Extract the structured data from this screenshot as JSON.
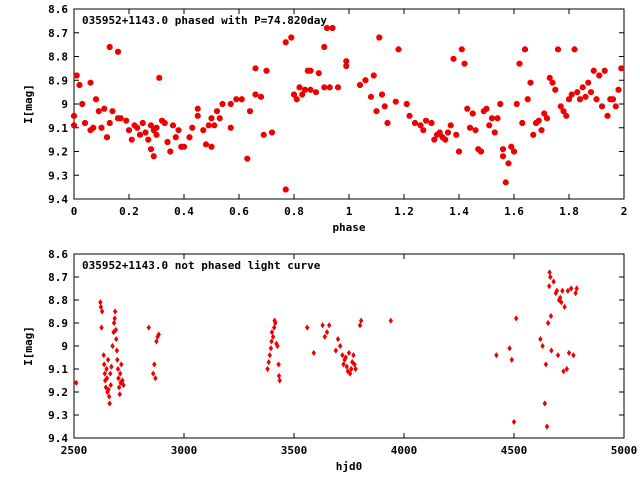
{
  "chart_data": [
    {
      "type": "scatter",
      "title": "035952+1143.0 phased with P=74.820day",
      "xlabel": "phase",
      "ylabel": "I[mag]",
      "xlim": [
        0,
        2
      ],
      "ylim": [
        8.6,
        9.4
      ],
      "y_inverted": true,
      "grid": false,
      "color": "#ee0000",
      "xticks": [
        "0",
        "0.2",
        "0.4",
        "0.6",
        "0.8",
        "1",
        "1.2",
        "1.4",
        "1.6",
        "1.8",
        "2"
      ],
      "yticks": [
        "8.6",
        "8.7",
        "8.8",
        "8.9",
        "9",
        "9.1",
        "9.2",
        "9.3",
        "9.4"
      ],
      "points": [
        [
          0.0,
          9.05
        ],
        [
          0.0,
          9.09
        ],
        [
          0.01,
          8.88
        ],
        [
          0.02,
          8.92
        ],
        [
          0.03,
          9.0
        ],
        [
          0.04,
          9.08
        ],
        [
          0.06,
          9.11
        ],
        [
          0.06,
          8.91
        ],
        [
          0.07,
          9.1
        ],
        [
          0.08,
          8.98
        ],
        [
          0.09,
          9.03
        ],
        [
          0.1,
          9.1
        ],
        [
          0.11,
          9.02
        ],
        [
          0.12,
          9.14
        ],
        [
          0.13,
          9.08
        ],
        [
          0.13,
          8.76
        ],
        [
          0.14,
          9.03
        ],
        [
          0.16,
          9.06
        ],
        [
          0.16,
          8.78
        ],
        [
          0.17,
          9.06
        ],
        [
          0.19,
          9.07
        ],
        [
          0.2,
          9.11
        ],
        [
          0.21,
          9.15
        ],
        [
          0.22,
          9.09
        ],
        [
          0.23,
          9.1
        ],
        [
          0.24,
          9.13
        ],
        [
          0.25,
          9.08
        ],
        [
          0.26,
          9.12
        ],
        [
          0.27,
          9.15
        ],
        [
          0.28,
          9.09
        ],
        [
          0.28,
          9.19
        ],
        [
          0.29,
          9.11
        ],
        [
          0.29,
          9.22
        ],
        [
          0.3,
          9.1
        ],
        [
          0.3,
          9.13
        ],
        [
          0.31,
          8.89
        ],
        [
          0.32,
          9.07
        ],
        [
          0.33,
          9.08
        ],
        [
          0.34,
          9.16
        ],
        [
          0.35,
          9.2
        ],
        [
          0.36,
          9.09
        ],
        [
          0.37,
          9.14
        ],
        [
          0.38,
          9.11
        ],
        [
          0.39,
          9.18
        ],
        [
          0.4,
          9.18
        ],
        [
          0.42,
          9.14
        ],
        [
          0.43,
          9.1
        ],
        [
          0.45,
          9.05
        ],
        [
          0.45,
          9.02
        ],
        [
          0.47,
          9.11
        ],
        [
          0.48,
          9.17
        ],
        [
          0.49,
          9.09
        ],
        [
          0.5,
          9.06
        ],
        [
          0.5,
          9.18
        ],
        [
          0.51,
          9.09
        ],
        [
          0.52,
          9.03
        ],
        [
          0.53,
          9.06
        ],
        [
          0.54,
          9.0
        ],
        [
          0.57,
          9.0
        ],
        [
          0.57,
          9.1
        ],
        [
          0.59,
          8.98
        ],
        [
          0.61,
          8.98
        ],
        [
          0.63,
          9.23
        ],
        [
          0.64,
          9.03
        ],
        [
          0.66,
          8.96
        ],
        [
          0.66,
          8.85
        ],
        [
          0.68,
          8.97
        ],
        [
          0.69,
          9.13
        ],
        [
          0.7,
          8.86
        ],
        [
          0.72,
          9.12
        ],
        [
          0.77,
          9.36
        ],
        [
          0.77,
          8.74
        ],
        [
          0.79,
          8.72
        ],
        [
          0.8,
          8.96
        ],
        [
          0.81,
          8.98
        ],
        [
          0.82,
          8.93
        ],
        [
          0.83,
          8.96
        ],
        [
          0.84,
          8.94
        ],
        [
          0.85,
          8.86
        ],
        [
          0.86,
          8.86
        ],
        [
          0.86,
          8.94
        ],
        [
          0.88,
          8.95
        ],
        [
          0.89,
          8.87
        ],
        [
          0.91,
          8.76
        ],
        [
          0.91,
          8.93
        ],
        [
          0.92,
          8.68
        ],
        [
          0.93,
          8.93
        ],
        [
          0.94,
          8.68
        ],
        [
          0.96,
          8.93
        ],
        [
          0.99,
          8.84
        ],
        [
          0.99,
          8.82
        ],
        [
          1.04,
          8.92
        ],
        [
          1.06,
          8.9
        ],
        [
          1.08,
          8.97
        ],
        [
          1.09,
          8.88
        ],
        [
          1.1,
          9.03
        ],
        [
          1.11,
          8.72
        ],
        [
          1.12,
          8.96
        ],
        [
          1.13,
          9.01
        ],
        [
          1.14,
          9.08
        ],
        [
          1.17,
          8.99
        ],
        [
          1.18,
          8.77
        ],
        [
          1.21,
          9.0
        ],
        [
          1.22,
          9.05
        ],
        [
          1.24,
          9.08
        ],
        [
          1.26,
          9.09
        ],
        [
          1.27,
          9.11
        ],
        [
          1.28,
          9.07
        ],
        [
          1.3,
          9.08
        ],
        [
          1.31,
          9.15
        ],
        [
          1.32,
          9.13
        ],
        [
          1.33,
          9.12
        ],
        [
          1.34,
          9.14
        ],
        [
          1.35,
          9.15
        ],
        [
          1.36,
          9.12
        ],
        [
          1.37,
          9.09
        ],
        [
          1.38,
          8.81
        ],
        [
          1.39,
          9.13
        ],
        [
          1.4,
          9.2
        ],
        [
          1.41,
          8.77
        ],
        [
          1.42,
          8.83
        ],
        [
          1.43,
          9.02
        ],
        [
          1.44,
          9.1
        ],
        [
          1.45,
          9.04
        ],
        [
          1.46,
          9.11
        ],
        [
          1.47,
          9.19
        ],
        [
          1.48,
          9.2
        ],
        [
          1.49,
          9.03
        ],
        [
          1.5,
          9.02
        ],
        [
          1.51,
          9.09
        ],
        [
          1.52,
          9.06
        ],
        [
          1.53,
          9.12
        ],
        [
          1.54,
          9.06
        ],
        [
          1.55,
          9.0
        ],
        [
          1.56,
          9.22
        ],
        [
          1.56,
          9.19
        ],
        [
          1.57,
          9.33
        ],
        [
          1.58,
          9.25
        ],
        [
          1.59,
          9.18
        ],
        [
          1.6,
          9.2
        ],
        [
          1.61,
          9.0
        ],
        [
          1.62,
          8.83
        ],
        [
          1.63,
          9.08
        ],
        [
          1.64,
          8.77
        ],
        [
          1.65,
          8.98
        ],
        [
          1.66,
          8.91
        ],
        [
          1.67,
          9.13
        ],
        [
          1.68,
          9.08
        ],
        [
          1.69,
          9.07
        ],
        [
          1.7,
          9.11
        ],
        [
          1.71,
          9.04
        ],
        [
          1.72,
          9.06
        ],
        [
          1.73,
          8.89
        ],
        [
          1.74,
          8.91
        ],
        [
          1.75,
          8.94
        ],
        [
          1.76,
          8.77
        ],
        [
          1.77,
          9.01
        ],
        [
          1.78,
          9.03
        ],
        [
          1.79,
          9.05
        ],
        [
          1.8,
          8.98
        ],
        [
          1.81,
          8.96
        ],
        [
          1.82,
          8.77
        ],
        [
          1.83,
          8.95
        ],
        [
          1.84,
          8.98
        ],
        [
          1.85,
          8.93
        ],
        [
          1.86,
          8.97
        ],
        [
          1.87,
          8.91
        ],
        [
          1.88,
          8.95
        ],
        [
          1.89,
          8.86
        ],
        [
          1.9,
          8.98
        ],
        [
          1.91,
          8.88
        ],
        [
          1.92,
          9.01
        ],
        [
          1.93,
          8.86
        ],
        [
          1.94,
          9.05
        ],
        [
          1.95,
          8.98
        ],
        [
          1.96,
          8.98
        ],
        [
          1.97,
          9.01
        ],
        [
          1.98,
          8.94
        ],
        [
          1.99,
          8.85
        ]
      ]
    },
    {
      "type": "scatter",
      "title": "035952+1143.0 not phased light curve",
      "xlabel": "hjd0",
      "ylabel": "I[mag]",
      "xlim": [
        2500,
        5000
      ],
      "ylim": [
        8.6,
        9.4
      ],
      "y_inverted": true,
      "grid": false,
      "color": "#ee0000",
      "xticks": [
        "2500",
        "3000",
        "3500",
        "4000",
        "4500",
        "5000"
      ],
      "yticks": [
        "8.6",
        "8.7",
        "8.8",
        "8.9",
        "9",
        "9.1",
        "9.2",
        "9.3",
        "9.4"
      ],
      "points": [
        [
          2510,
          9.16
        ],
        [
          2620,
          8.81
        ],
        [
          2622,
          8.83
        ],
        [
          2625,
          8.92
        ],
        [
          2628,
          8.85
        ],
        [
          2635,
          9.04
        ],
        [
          2637,
          9.08
        ],
        [
          2640,
          9.12
        ],
        [
          2642,
          9.15
        ],
        [
          2645,
          9.18
        ],
        [
          2648,
          9.1
        ],
        [
          2650,
          9.14
        ],
        [
          2652,
          9.2
        ],
        [
          2655,
          9.06
        ],
        [
          2657,
          9.19
        ],
        [
          2660,
          9.22
        ],
        [
          2662,
          9.25
        ],
        [
          2665,
          9.12
        ],
        [
          2667,
          9.17
        ],
        [
          2670,
          9.09
        ],
        [
          2675,
          9.0
        ],
        [
          2680,
          8.94
        ],
        [
          2682,
          8.9
        ],
        [
          2685,
          8.88
        ],
        [
          2687,
          8.85
        ],
        [
          2690,
          8.93
        ],
        [
          2692,
          8.97
        ],
        [
          2695,
          9.02
        ],
        [
          2697,
          9.06
        ],
        [
          2700,
          9.1
        ],
        [
          2702,
          9.14
        ],
        [
          2705,
          9.18
        ],
        [
          2708,
          9.21
        ],
        [
          2710,
          9.12
        ],
        [
          2712,
          9.16
        ],
        [
          2715,
          9.08
        ],
        [
          2720,
          9.15
        ],
        [
          2725,
          9.17
        ],
        [
          2840,
          8.92
        ],
        [
          2860,
          9.12
        ],
        [
          2865,
          9.08
        ],
        [
          2870,
          9.14
        ],
        [
          2875,
          8.98
        ],
        [
          2880,
          8.96
        ],
        [
          2885,
          8.95
        ],
        [
          3380,
          9.1
        ],
        [
          3385,
          9.07
        ],
        [
          3390,
          9.04
        ],
        [
          3395,
          9.01
        ],
        [
          3398,
          8.98
        ],
        [
          3400,
          8.94
        ],
        [
          3405,
          8.96
        ],
        [
          3410,
          8.92
        ],
        [
          3412,
          8.89
        ],
        [
          3415,
          8.9
        ],
        [
          3420,
          8.99
        ],
        [
          3425,
          9.0
        ],
        [
          3430,
          9.08
        ],
        [
          3432,
          9.13
        ],
        [
          3435,
          9.15
        ],
        [
          3560,
          8.92
        ],
        [
          3590,
          9.03
        ],
        [
          3630,
          8.91
        ],
        [
          3640,
          8.96
        ],
        [
          3650,
          8.94
        ],
        [
          3660,
          8.91
        ],
        [
          3690,
          9.02
        ],
        [
          3700,
          8.97
        ],
        [
          3710,
          9.0
        ],
        [
          3720,
          9.04
        ],
        [
          3725,
          9.08
        ],
        [
          3730,
          9.06
        ],
        [
          3735,
          9.05
        ],
        [
          3740,
          9.09
        ],
        [
          3745,
          9.11
        ],
        [
          3750,
          9.03
        ],
        [
          3755,
          9.12
        ],
        [
          3760,
          9.1
        ],
        [
          3765,
          9.07
        ],
        [
          3770,
          9.04
        ],
        [
          3775,
          9.08
        ],
        [
          3780,
          9.1
        ],
        [
          3800,
          8.91
        ],
        [
          3805,
          8.89
        ],
        [
          3940,
          8.89
        ],
        [
          4420,
          9.04
        ],
        [
          4480,
          9.01
        ],
        [
          4490,
          9.06
        ],
        [
          4500,
          9.33
        ],
        [
          4510,
          8.88
        ],
        [
          4620,
          8.97
        ],
        [
          4630,
          9.0
        ],
        [
          4640,
          9.25
        ],
        [
          4645,
          9.08
        ],
        [
          4650,
          9.35
        ],
        [
          4655,
          8.9
        ],
        [
          4660,
          8.74
        ],
        [
          4662,
          8.68
        ],
        [
          4665,
          8.7
        ],
        [
          4668,
          8.87
        ],
        [
          4670,
          9.02
        ],
        [
          4680,
          8.72
        ],
        [
          4690,
          8.77
        ],
        [
          4695,
          8.76
        ],
        [
          4700,
          9.04
        ],
        [
          4705,
          8.8
        ],
        [
          4710,
          8.79
        ],
        [
          4715,
          8.81
        ],
        [
          4720,
          8.76
        ],
        [
          4725,
          9.11
        ],
        [
          4730,
          8.83
        ],
        [
          4740,
          9.1
        ],
        [
          4745,
          8.76
        ],
        [
          4750,
          9.03
        ],
        [
          4760,
          8.75
        ],
        [
          4770,
          9.04
        ],
        [
          4780,
          8.77
        ],
        [
          4785,
          8.75
        ]
      ]
    }
  ]
}
